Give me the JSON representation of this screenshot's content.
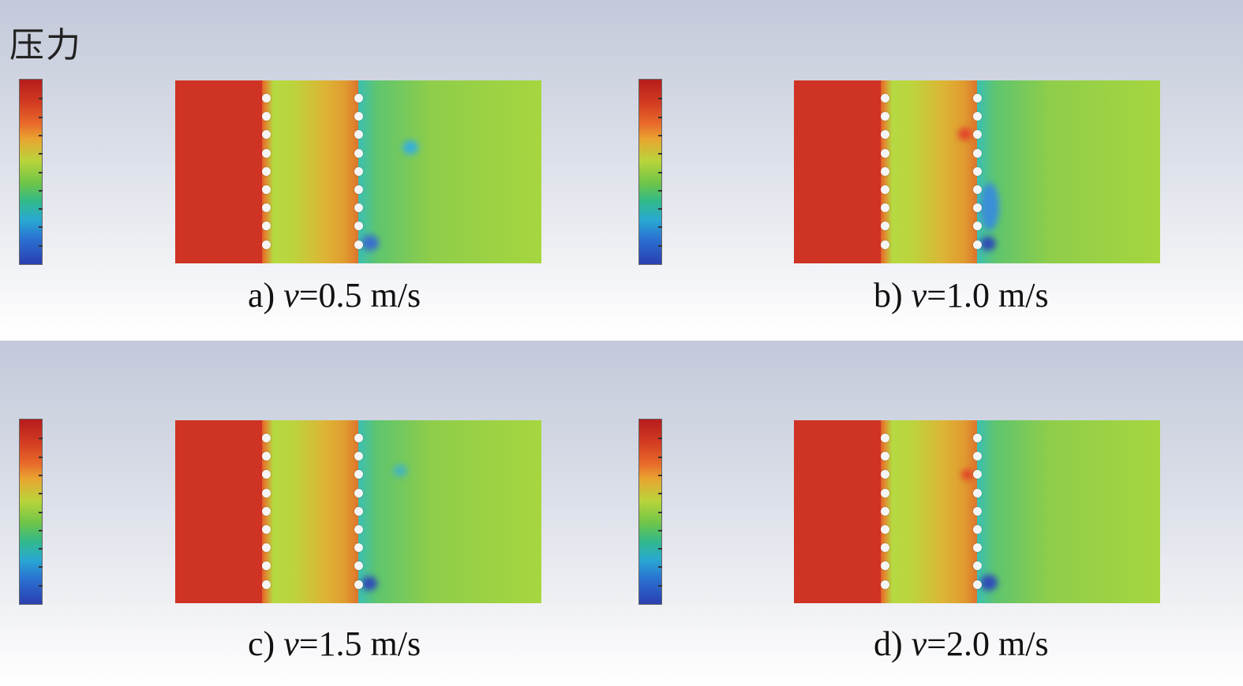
{
  "legend": {
    "title": "压力"
  },
  "panels": [
    {
      "id": "a",
      "label": "a) ",
      "variable": "v",
      "value_text": "=0.5 m/s"
    },
    {
      "id": "b",
      "label": "b) ",
      "variable": "v",
      "value_text": "=1.0 m/s"
    },
    {
      "id": "c",
      "label": "c) ",
      "variable": "v",
      "value_text": "=1.5 m/s"
    },
    {
      "id": "d",
      "label": "d) ",
      "variable": "v",
      "value_text": "=2.0 m/s"
    }
  ],
  "colormap": [
    "#b51c1c",
    "#e86a2a",
    "#e9a430",
    "#b9d43a",
    "#6fc548",
    "#32b98a",
    "#29a9d2",
    "#2a73d2",
    "#2a3fb0"
  ]
}
